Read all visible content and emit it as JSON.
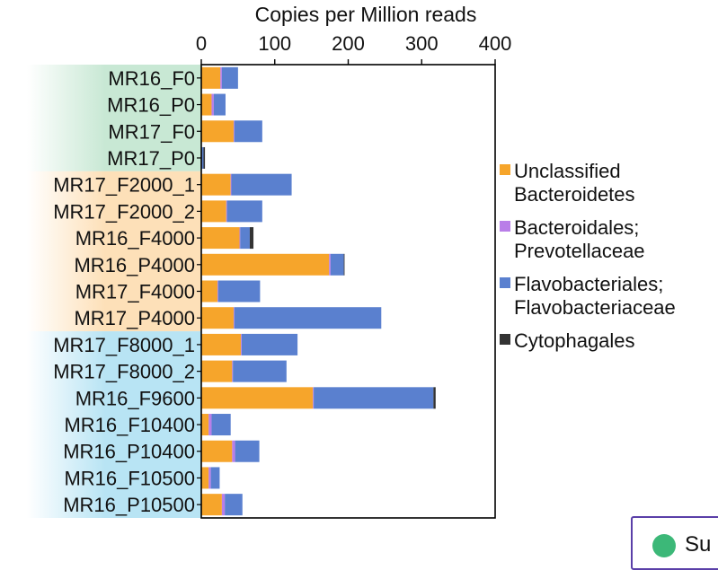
{
  "chart_data": {
    "type": "bar",
    "orientation": "horizontal",
    "stacked": true,
    "title": "Copies per Million reads",
    "xlabel": "Copies per Million reads",
    "ylabel": "",
    "xlim": [
      0,
      400
    ],
    "xticks": [
      "0",
      "100",
      "200",
      "300",
      "400"
    ],
    "grid": false,
    "legend_position": "right",
    "categories": [
      "MR16_F0",
      "MR16_P0",
      "MR17_F0",
      "MR17_P0",
      "MR17_F2000_1",
      "MR17_F2000_2",
      "MR16_F4000",
      "MR16_P4000",
      "MR17_F4000",
      "MR17_P4000",
      "MR17_F8000_1",
      "MR17_F8000_2",
      "MR16_F9600",
      "MR16_F10400",
      "MR16_P10400",
      "MR16_F10500",
      "MR16_P10500"
    ],
    "category_groups": [
      {
        "color": "#c8e8d4",
        "count": 4
      },
      {
        "color": "#fde0b8",
        "count": 6
      },
      {
        "color": "#b8e4f4",
        "count": 7
      }
    ],
    "series": [
      {
        "name": "Unclassified Bacteroidetes",
        "color": "#f6a52b",
        "values": [
          26,
          14,
          44,
          0,
          40,
          34,
          52,
          174,
          22,
          44,
          54,
          42,
          152,
          10,
          42,
          10,
          28
        ]
      },
      {
        "name": "Bacteroidales; Prevotellaceae",
        "color": "#b97ee8",
        "values": [
          2,
          3,
          1,
          0,
          1,
          1,
          1,
          2,
          1,
          1,
          1,
          1,
          1,
          4,
          4,
          3,
          4
        ]
      },
      {
        "name": "Flavobacteriales; Flavobacteriaceae",
        "color": "#5a80cf",
        "values": [
          22,
          16,
          38,
          3,
          82,
          48,
          13,
          18,
          57,
          200,
          76,
          73,
          163,
          26,
          33,
          12,
          24
        ]
      },
      {
        "name": "Cytophagales",
        "color": "#333333",
        "values": [
          0,
          0,
          0,
          2,
          0,
          0,
          5,
          1,
          0,
          0,
          0,
          0,
          3,
          0,
          0,
          0,
          0
        ]
      }
    ],
    "legend": [
      {
        "lines": [
          "Unclassified",
          "Bacteroidetes"
        ],
        "color": "#f6a52b"
      },
      {
        "lines": [
          "Bacteroidales;",
          "Prevotellaceae"
        ],
        "color": "#b97ee8"
      },
      {
        "lines": [
          "Flavobacteriales;",
          "Flavobacteriaceae"
        ],
        "color": "#5a80cf"
      },
      {
        "lines": [
          "Cytophagales"
        ],
        "color": "#333333"
      }
    ]
  },
  "corner_panel": {
    "text": "Su"
  }
}
